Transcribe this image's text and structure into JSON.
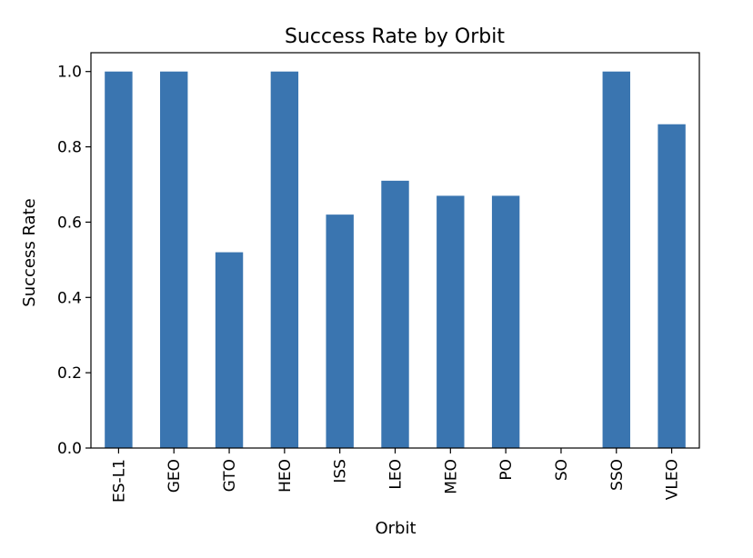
{
  "chart_data": {
    "type": "bar",
    "title": "Success Rate by Orbit",
    "xlabel": "Orbit",
    "ylabel": "Success Rate",
    "categories": [
      "ES-L1",
      "GEO",
      "GTO",
      "HEO",
      "ISS",
      "LEO",
      "MEO",
      "PO",
      "SO",
      "SSO",
      "VLEO"
    ],
    "values": [
      1.0,
      1.0,
      0.52,
      1.0,
      0.62,
      0.71,
      0.67,
      0.67,
      0.0,
      1.0,
      0.86
    ],
    "ylim": [
      0,
      1.05
    ],
    "yticks": [
      0.0,
      0.2,
      0.4,
      0.6,
      0.8,
      1.0
    ],
    "ytick_labels": [
      "0.0",
      "0.2",
      "0.4",
      "0.6",
      "0.8",
      "1.0"
    ],
    "bar_color": "#3a75b0",
    "grid": false,
    "legend": "none"
  }
}
